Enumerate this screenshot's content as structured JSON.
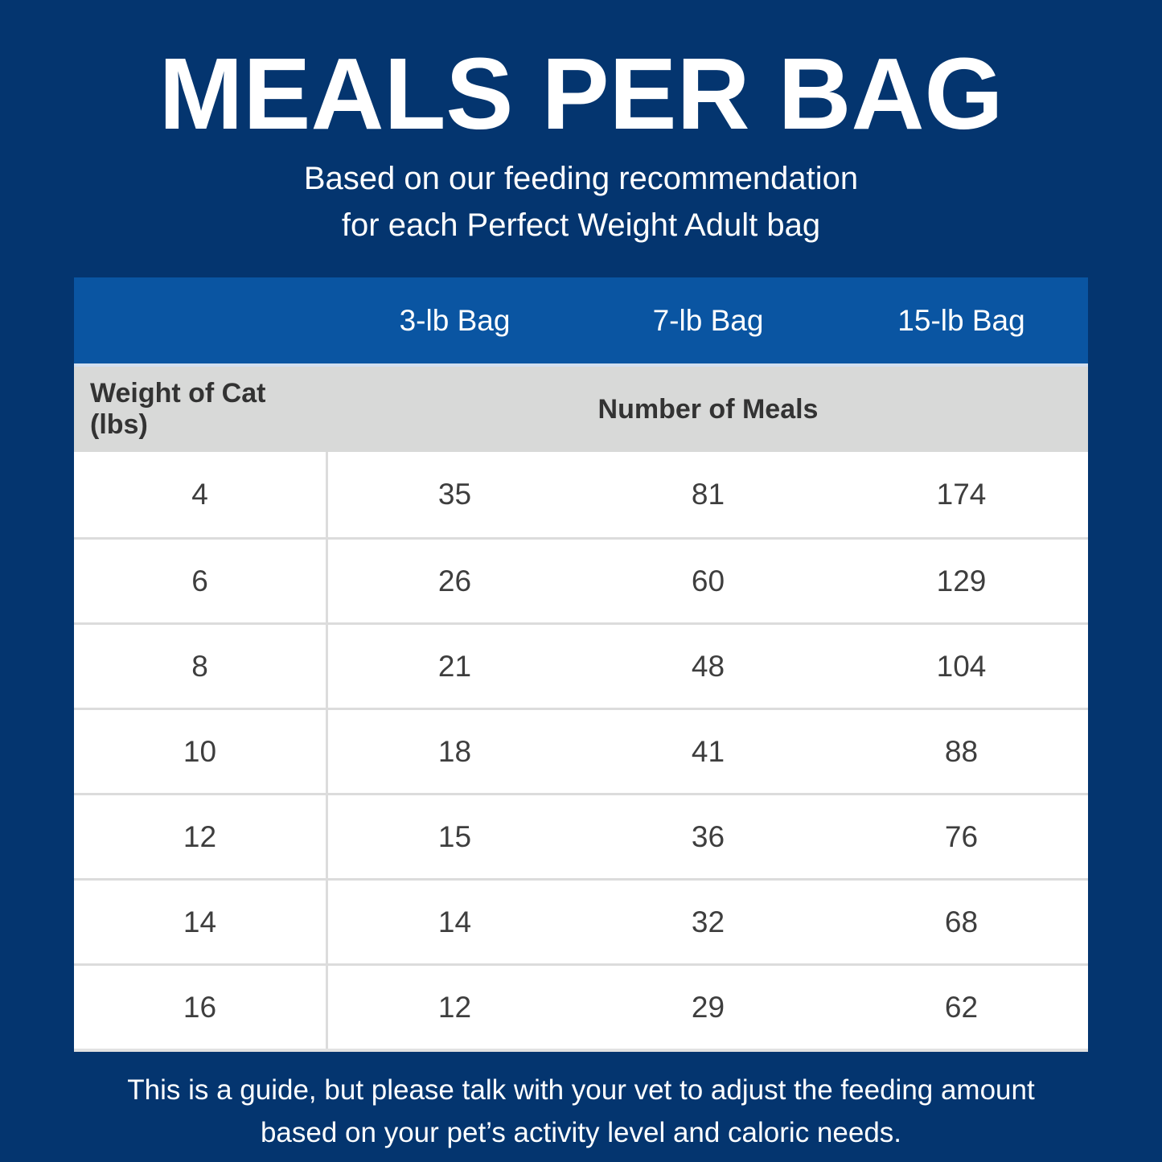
{
  "colors": {
    "background": "#04356f",
    "header_blue": "#0a55a2",
    "subheader_gray": "#d8d9d8",
    "row_white": "#ffffff",
    "grid_line": "#dcdcdc",
    "dark_text": "#3e3e3e"
  },
  "title": "MEALS PER BAG",
  "subtitle_line1": "Based on our feeding recommendation",
  "subtitle_line2": "for each Perfect Weight Adult bag",
  "table": {
    "bag_headers": [
      "3-lb Bag",
      "7-lb Bag",
      "15-lb Bag"
    ],
    "weight_header": "Weight of Cat (lbs)",
    "meals_header": "Number of Meals",
    "rows": [
      {
        "weight": "4",
        "meals": [
          "35",
          "81",
          "174"
        ]
      },
      {
        "weight": "6",
        "meals": [
          "26",
          "60",
          "129"
        ]
      },
      {
        "weight": "8",
        "meals": [
          "21",
          "48",
          "104"
        ]
      },
      {
        "weight": "10",
        "meals": [
          "18",
          "41",
          "88"
        ]
      },
      {
        "weight": "12",
        "meals": [
          "15",
          "36",
          "76"
        ]
      },
      {
        "weight": "14",
        "meals": [
          "14",
          "32",
          "68"
        ]
      },
      {
        "weight": "16",
        "meals": [
          "12",
          "29",
          "62"
        ]
      }
    ]
  },
  "footer_line1": "This is a guide, but please talk with your vet to adjust the feeding amount",
  "footer_line2": "based on your pet’s activity level and caloric needs.",
  "chart_data": {
    "type": "table",
    "title": "MEALS PER BAG",
    "subtitle": "Based on our feeding recommendation for each Perfect Weight Adult bag",
    "columns": [
      "Weight of Cat (lbs)",
      "3-lb Bag",
      "7-lb Bag",
      "15-lb Bag"
    ],
    "value_units": "Number of Meals",
    "rows": [
      [
        4,
        35,
        81,
        174
      ],
      [
        6,
        26,
        60,
        129
      ],
      [
        8,
        21,
        48,
        104
      ],
      [
        10,
        18,
        41,
        88
      ],
      [
        12,
        15,
        36,
        76
      ],
      [
        14,
        14,
        32,
        68
      ],
      [
        16,
        12,
        29,
        62
      ]
    ],
    "note": "This is a guide, but please talk with your vet to adjust the feeding amount based on your pet’s activity level and caloric needs."
  }
}
